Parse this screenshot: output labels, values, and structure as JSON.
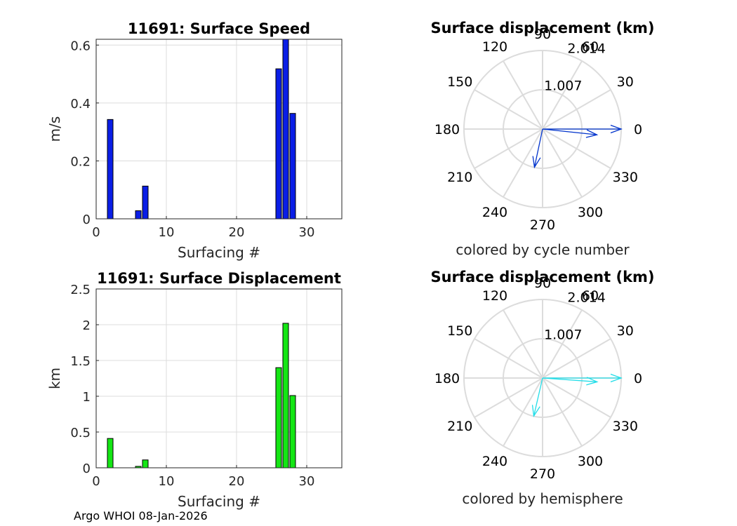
{
  "footer": "Argo WHOI 08-Jan-2026",
  "colors": {
    "speed_bar": "#0a1ee6",
    "displacement_bar": "#14e614",
    "cycle_arrow": "#0033cc",
    "hemisphere_arrow": "#22dde8",
    "grid": "#dcdcdc"
  },
  "chart_data": [
    {
      "type": "bar",
      "title": "11691: Surface Speed",
      "xlabel": "Surfacing #",
      "ylabel": "m/s",
      "xlim": [
        0,
        35
      ],
      "ylim": [
        0,
        0.62
      ],
      "xticks": [
        0,
        10,
        20,
        30
      ],
      "yticks": [
        0,
        0.2,
        0.4,
        0.6
      ],
      "ytick_labels": [
        "0",
        "0.2",
        "0.4",
        "0.6"
      ],
      "grid": true,
      "x": [
        2,
        6,
        7,
        26,
        27,
        28
      ],
      "values": [
        0.343,
        0.028,
        0.113,
        0.518,
        0.62,
        0.364
      ]
    },
    {
      "type": "polar",
      "title": "Surface displacement (km)",
      "subtitle": "colored by cycle number",
      "rmax": 2.014,
      "r_tick_labels": [
        "1.007",
        "2.014"
      ],
      "angle_labels": [
        "0",
        "30",
        "60",
        "90",
        "120",
        "150",
        "180",
        "210",
        "240",
        "270",
        "300",
        "330"
      ],
      "grid": true,
      "vectors": [
        {
          "r": 2.014,
          "angle_deg": 0
        },
        {
          "r": 1.4,
          "angle_deg": -6
        },
        {
          "r": 1.0,
          "angle_deg": 258
        }
      ]
    },
    {
      "type": "bar",
      "title": "11691: Surface Displacement",
      "xlabel": "Surfacing #",
      "ylabel": "km",
      "xlim": [
        0,
        35
      ],
      "ylim": [
        0,
        2.5
      ],
      "xticks": [
        0,
        10,
        20,
        30
      ],
      "yticks": [
        0,
        0.5,
        1,
        1.5,
        2,
        2.5
      ],
      "ytick_labels": [
        "0",
        "0.5",
        "1",
        "1.5",
        "2",
        "2.5"
      ],
      "grid": true,
      "x": [
        2,
        6,
        7,
        26,
        27,
        28
      ],
      "values": [
        0.41,
        0.02,
        0.11,
        1.4,
        2.02,
        1.01
      ]
    },
    {
      "type": "polar",
      "title": "Surface displacement (km)",
      "subtitle": "colored by hemisphere",
      "rmax": 2.014,
      "r_tick_labels": [
        "1.007",
        "2.014"
      ],
      "angle_labels": [
        "0",
        "30",
        "60",
        "90",
        "120",
        "150",
        "180",
        "210",
        "240",
        "270",
        "300",
        "330"
      ],
      "grid": true,
      "vectors": [
        {
          "r": 2.014,
          "angle_deg": 0
        },
        {
          "r": 1.4,
          "angle_deg": -4
        },
        {
          "r": 1.0,
          "angle_deg": 257
        }
      ]
    }
  ]
}
